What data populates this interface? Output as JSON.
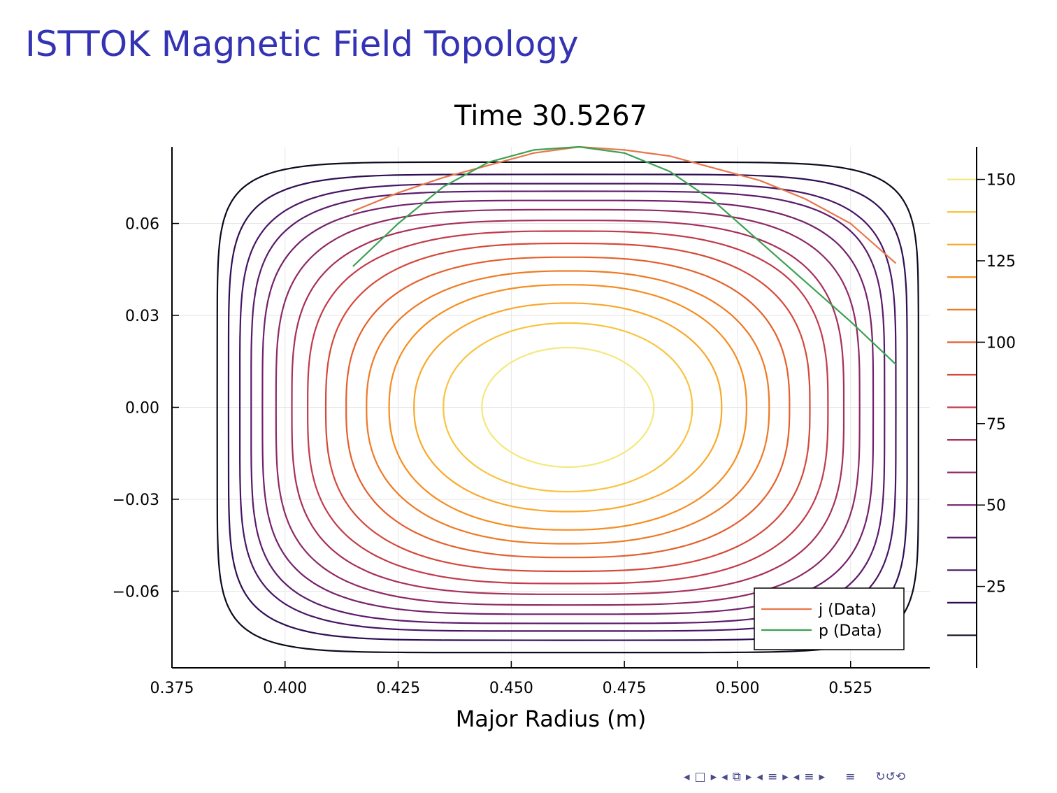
{
  "slide": {
    "title": "ISTTOK Magnetic Field Topology"
  },
  "navigation": {
    "icons": [
      "nav-prev-arrow-icon",
      "nav-frame-icon",
      "nav-next-arrow-icon",
      "nav-prev-arrow-icon",
      "nav-subsection-icon",
      "nav-next-arrow-icon",
      "nav-prev-arrow-icon",
      "nav-section-icon",
      "nav-next-arrow-icon",
      "nav-prev-arrow-icon",
      "nav-section-icon",
      "nav-next-arrow-icon",
      "nav-align-icon",
      "nav-search-icon"
    ]
  },
  "chart_data": {
    "type": "contour",
    "title": "Time 30.5267",
    "xlabel": "Major Radius (m)",
    "ylabel": "",
    "xlim": [
      0.375,
      0.5425
    ],
    "ylim": [
      -0.085,
      0.085
    ],
    "xticks": [
      0.375,
      0.4,
      0.425,
      0.45,
      0.475,
      0.5,
      0.525
    ],
    "xtick_labels": [
      "0.375",
      "0.400",
      "0.425",
      "0.450",
      "0.475",
      "0.500",
      "0.525"
    ],
    "yticks": [
      0.06,
      0.03,
      0.0,
      -0.03,
      -0.06
    ],
    "ytick_labels": [
      "0.06",
      "0.03",
      "0.00",
      "−0.03",
      "−0.06"
    ],
    "grid": true,
    "colormap": "inferno",
    "colorbar": {
      "range": [
        0,
        160
      ],
      "ticks": [
        150,
        125,
        100,
        75,
        50,
        25
      ],
      "tick_labels": [
        "150",
        "125",
        "100",
        "75",
        "50",
        "25"
      ],
      "levels": [
        10,
        20,
        30,
        40,
        50,
        60,
        70,
        80,
        90,
        100,
        110,
        120,
        130,
        140,
        150
      ]
    },
    "contour_center": [
      0.4625,
      0.0
    ],
    "contour_levels": [
      {
        "level": 150,
        "a": 0.019,
        "b": 0.0195,
        "n": 2.0,
        "color": "#f5e87c"
      },
      {
        "level": 140,
        "a": 0.0275,
        "b": 0.0275,
        "n": 2.1,
        "color": "#f9c440"
      },
      {
        "level": 130,
        "a": 0.034,
        "b": 0.034,
        "n": 2.2,
        "color": "#f9a82a"
      },
      {
        "level": 120,
        "a": 0.0395,
        "b": 0.04,
        "n": 2.3,
        "color": "#f68d1f"
      },
      {
        "level": 110,
        "a": 0.0445,
        "b": 0.0445,
        "n": 2.4,
        "color": "#ee7a26"
      },
      {
        "level": 100,
        "a": 0.049,
        "b": 0.049,
        "n": 2.6,
        "color": "#e4602c"
      },
      {
        "level": 90,
        "a": 0.0535,
        "b": 0.0535,
        "n": 2.8,
        "color": "#d4493b"
      },
      {
        "level": 80,
        "a": 0.0575,
        "b": 0.0575,
        "n": 3.0,
        "color": "#c23b4a"
      },
      {
        "level": 70,
        "a": 0.061,
        "b": 0.061,
        "n": 3.3,
        "color": "#a72f5b"
      },
      {
        "level": 60,
        "a": 0.0645,
        "b": 0.0645,
        "n": 3.6,
        "color": "#8e2a65"
      },
      {
        "level": 50,
        "a": 0.0675,
        "b": 0.0675,
        "n": 4.0,
        "color": "#74216b"
      },
      {
        "level": 40,
        "a": 0.07,
        "b": 0.0705,
        "n": 4.5,
        "color": "#5c1a6b"
      },
      {
        "level": 30,
        "a": 0.0725,
        "b": 0.073,
        "n": 5.0,
        "color": "#471565"
      },
      {
        "level": 20,
        "a": 0.075,
        "b": 0.076,
        "n": 6.0,
        "color": "#2e0f52"
      },
      {
        "level": 10,
        "a": 0.0775,
        "b": 0.08,
        "n": 7.5,
        "color": "#0e0a1e"
      }
    ],
    "series": [
      {
        "name": "j (Data)",
        "color": "#e8764a",
        "x": [
          0.415,
          0.425,
          0.435,
          0.445,
          0.455,
          0.465,
          0.475,
          0.485,
          0.495,
          0.505,
          0.515,
          0.525,
          0.535
        ],
        "y": [
          0.064,
          0.07,
          0.075,
          0.079,
          0.083,
          0.085,
          0.084,
          0.082,
          0.078,
          0.074,
          0.068,
          0.06,
          0.047
        ]
      },
      {
        "name": "p (Data)",
        "color": "#3ca152",
        "x": [
          0.415,
          0.425,
          0.435,
          0.445,
          0.455,
          0.465,
          0.475,
          0.485,
          0.495,
          0.505,
          0.515,
          0.525,
          0.535
        ],
        "y": [
          0.046,
          0.06,
          0.072,
          0.08,
          0.084,
          0.085,
          0.083,
          0.077,
          0.067,
          0.054,
          0.041,
          0.028,
          0.014
        ]
      }
    ],
    "legend": {
      "position": "bottom-right",
      "entries": [
        "j (Data)",
        "p (Data)"
      ]
    }
  }
}
